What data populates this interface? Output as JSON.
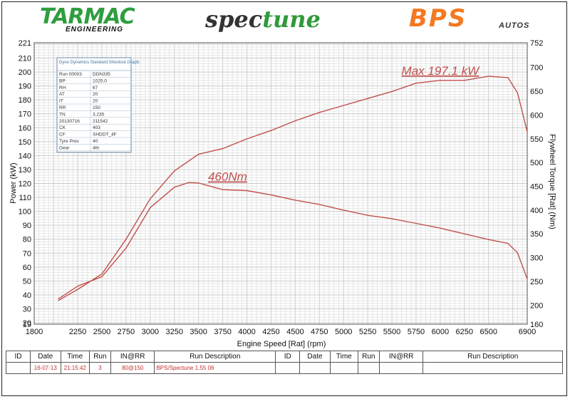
{
  "header": {
    "logo_left": "TARMAC",
    "logo_left_sub": "ENGINEERING",
    "logo_center_a": "spec",
    "logo_center_b": "tune",
    "logo_right": "BPS",
    "logo_right_sub": "AUTOS"
  },
  "chart_data": {
    "type": "line",
    "xlabel": "Engine Speed [Rat] (rpm)",
    "ylabel": "Power (kW)",
    "y2label": "Flywheel Torque [Rat] (Nm)",
    "xlim": [
      1800,
      6900
    ],
    "ylim": [
      19,
      221
    ],
    "y2lim": [
      160,
      752
    ],
    "grid": true,
    "x_ticks": [
      "1800",
      "2250",
      "2500",
      "2750",
      "3000",
      "3250",
      "3500",
      "3750",
      "4000",
      "4250",
      "4500",
      "4750",
      "5000",
      "5250",
      "5500",
      "5750",
      "6000",
      "6250",
      "6500",
      "6900"
    ],
    "y_ticks": [
      "221",
      "210",
      "200",
      "190",
      "180",
      "170",
      "160",
      "150",
      "140",
      "130",
      "120",
      "110",
      "100",
      "90",
      "80",
      "70",
      "60",
      "50",
      "40",
      "30",
      "20",
      "19"
    ],
    "y2_ticks": [
      "752",
      "700",
      "650",
      "600",
      "550",
      "500",
      "450",
      "400",
      "350",
      "300",
      "250",
      "200",
      "160"
    ],
    "line_color": "#c0504d",
    "series": [
      {
        "axis": "left",
        "x": [
          2050,
          2250,
          2500,
          2750,
          3000,
          3250,
          3500,
          3750,
          4000,
          4250,
          4500,
          4750,
          5000,
          5250,
          5500,
          5750,
          6000,
          6250,
          6500,
          6700,
          6800,
          6900
        ],
        "values": [
          36,
          44,
          55,
          80,
          109,
          129,
          141,
          145,
          152,
          158,
          165,
          171,
          176,
          181,
          186,
          192,
          194,
          194,
          197,
          196,
          185,
          157
        ]
      },
      {
        "axis": "right",
        "x": [
          2050,
          2250,
          2500,
          2750,
          3000,
          3250,
          3400,
          3500,
          3750,
          4000,
          4250,
          4500,
          4750,
          5000,
          5250,
          5500,
          5750,
          6000,
          6250,
          6500,
          6700,
          6800,
          6900
        ],
        "values": [
          213,
          240,
          260,
          320,
          405,
          448,
          458,
          457,
          443,
          441,
          432,
          421,
          412,
          400,
          389,
          382,
          372,
          362,
          350,
          338,
          330,
          310,
          255
        ]
      }
    ],
    "annotations": [
      {
        "text": "Max 197.1 kW",
        "x": 6000,
        "y": 198
      },
      {
        "text": "460Nm",
        "x": 3800,
        "y": 122
      }
    ],
    "info_box": {
      "title": "Dyno Dynamics Standard Shootout Graph.",
      "rows": [
        [
          "Run 00003",
          "DDN335"
        ],
        [
          "BP",
          "1025.0"
        ],
        [
          "RH",
          "67"
        ],
        [
          "AT",
          "20"
        ],
        [
          "IT",
          "20"
        ],
        [
          "RR",
          "150"
        ],
        [
          "TN",
          "3.235"
        ],
        [
          "20130716",
          "211542"
        ],
        [
          "CK",
          "403"
        ],
        [
          "CF",
          "SHDDT_4F"
        ],
        [
          "Tyre Pres",
          "40"
        ],
        [
          "Gear",
          "4th"
        ]
      ]
    }
  },
  "run_table": {
    "headers": [
      "ID",
      "Date",
      "Time",
      "Run",
      "IN@RR",
      "Run Description",
      "ID",
      "Date",
      "Time",
      "Run",
      "IN@RR",
      "Run Description"
    ],
    "row": [
      "",
      "16-07-13",
      "21:15:42",
      "3",
      "80@150",
      "BPS/Spectune  1.55  06",
      "",
      "",
      "",
      "",
      "",
      ""
    ]
  }
}
